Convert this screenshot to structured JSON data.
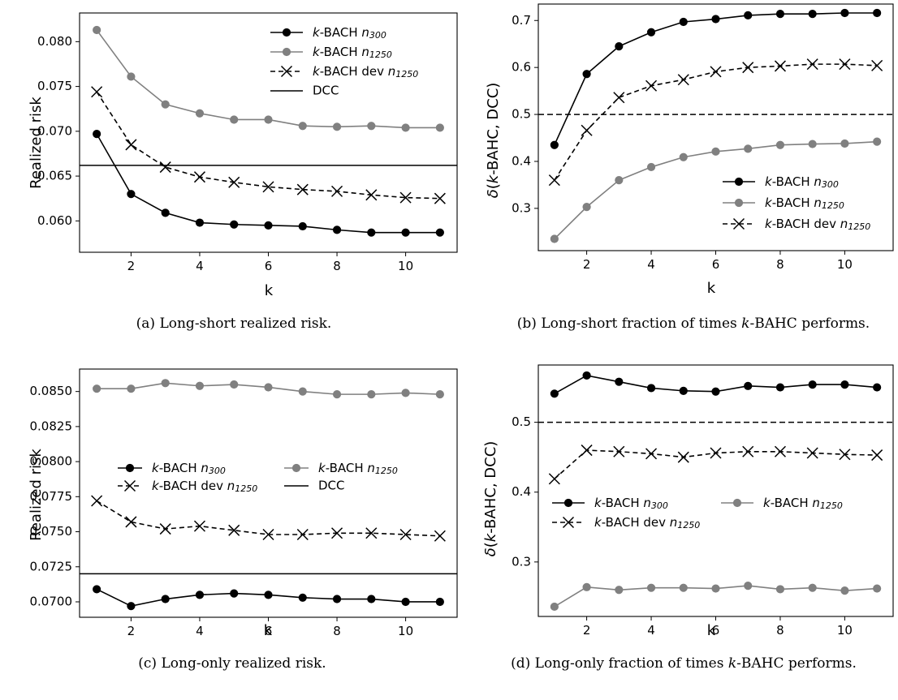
{
  "chart_data": [
    {
      "id": "a",
      "type": "line",
      "caption": "(a) Long-short realized risk.",
      "xlabel": "k",
      "ylabel": "Realized risk",
      "x": [
        1,
        2,
        3,
        4,
        5,
        6,
        7,
        8,
        9,
        10,
        11
      ],
      "xlim": [
        0.5,
        11.5
      ],
      "ylim": [
        0.0565,
        0.0832
      ],
      "xticks": [
        2,
        4,
        6,
        8,
        10
      ],
      "yticks": [
        0.06,
        0.065,
        0.07,
        0.075,
        0.08
      ],
      "yticklabels": [
        "0.060",
        "0.065",
        "0.070",
        "0.075",
        "0.080"
      ],
      "legend_position": "upper right",
      "series": [
        {
          "name": "k-BACH n300",
          "name_prefix": "k",
          "name_body": "-BACH ",
          "name_sym": "n",
          "name_sub": "300",
          "color": "#000000",
          "marker": "circle",
          "dash": "solid",
          "values": [
            0.0697,
            0.063,
            0.0609,
            0.0598,
            0.0596,
            0.0595,
            0.0594,
            0.059,
            0.0587,
            0.0587,
            0.0587
          ]
        },
        {
          "name": "k-BACH n1250",
          "name_prefix": "k",
          "name_body": "-BACH ",
          "name_sym": "n",
          "name_sub": "1250",
          "color": "#808080",
          "marker": "circle",
          "dash": "solid",
          "values": [
            0.0813,
            0.0761,
            0.073,
            0.072,
            0.0713,
            0.0713,
            0.0706,
            0.0705,
            0.0706,
            0.0704,
            0.0704
          ]
        },
        {
          "name": "k-BACH dev n1250",
          "name_prefix": "k",
          "name_body": "-BACH dev ",
          "name_sym": "n",
          "name_sub": "1250",
          "color": "#000000",
          "marker": "x",
          "dash": "dashed",
          "values": [
            0.0744,
            0.0685,
            0.066,
            0.0649,
            0.0643,
            0.0638,
            0.0635,
            0.0633,
            0.0629,
            0.0626,
            0.0625
          ]
        }
      ],
      "hlines": [
        {
          "name": "DCC",
          "y": 0.0662,
          "color": "#000000",
          "dash": "solid",
          "in_legend": true
        }
      ]
    },
    {
      "id": "b",
      "type": "line",
      "caption": "(b) Long-short fraction of times k-BAHC performs.",
      "xlabel": "k",
      "ylabel": "δ(k-BAHC, DCC)",
      "x": [
        1,
        2,
        3,
        4,
        5,
        6,
        7,
        8,
        9,
        10,
        11
      ],
      "xlim": [
        0.5,
        11.5
      ],
      "ylim": [
        0.21,
        0.735
      ],
      "xticks": [
        2,
        4,
        6,
        8,
        10
      ],
      "yticks": [
        0.3,
        0.4,
        0.5,
        0.6,
        0.7
      ],
      "yticklabels": [
        "0.3",
        "0.4",
        "0.5",
        "0.6",
        "0.7"
      ],
      "legend_position": "lower right",
      "series": [
        {
          "name": "k-BACH n300",
          "name_prefix": "k",
          "name_body": "-BACH ",
          "name_sym": "n",
          "name_sub": "300",
          "color": "#000000",
          "marker": "circle",
          "dash": "solid",
          "values": [
            0.435,
            0.586,
            0.645,
            0.675,
            0.697,
            0.703,
            0.711,
            0.714,
            0.714,
            0.716,
            0.716
          ]
        },
        {
          "name": "k-BACH n1250",
          "name_prefix": "k",
          "name_body": "-BACH ",
          "name_sym": "n",
          "name_sub": "1250",
          "color": "#808080",
          "marker": "circle",
          "dash": "solid",
          "values": [
            0.235,
            0.303,
            0.36,
            0.388,
            0.409,
            0.421,
            0.427,
            0.435,
            0.437,
            0.438,
            0.442
          ]
        },
        {
          "name": "k-BACH dev n1250",
          "name_prefix": "k",
          "name_body": "-BACH dev ",
          "name_sym": "n",
          "name_sub": "1250",
          "color": "#000000",
          "marker": "x",
          "dash": "dashed",
          "values": [
            0.36,
            0.466,
            0.536,
            0.561,
            0.574,
            0.591,
            0.6,
            0.603,
            0.607,
            0.607,
            0.604
          ]
        }
      ],
      "hlines": [
        {
          "name": "",
          "y": 0.5,
          "color": "#000000",
          "dash": "dashed",
          "in_legend": false
        }
      ]
    },
    {
      "id": "c",
      "type": "line",
      "caption": "(c) Long-only realized risk.",
      "xlabel": "k",
      "ylabel": "Realized risk",
      "x": [
        1,
        2,
        3,
        4,
        5,
        6,
        7,
        8,
        9,
        10,
        11
      ],
      "xlim": [
        0.5,
        11.5
      ],
      "ylim": [
        0.0689,
        0.0866
      ],
      "xticks": [
        2,
        4,
        6,
        8,
        10
      ],
      "yticks": [
        0.07,
        0.0725,
        0.075,
        0.0775,
        0.08,
        0.0825,
        0.085
      ],
      "yticklabels": [
        "0.0700",
        "0.0725",
        "0.0750",
        "0.0775",
        "0.0800",
        "0.0825",
        "0.0850"
      ],
      "legend_position": "center",
      "series": [
        {
          "name": "k-BACH n300",
          "name_prefix": "k",
          "name_body": "-BACH ",
          "name_sym": "n",
          "name_sub": "300",
          "color": "#000000",
          "marker": "circle",
          "dash": "solid",
          "values": [
            0.0709,
            0.0697,
            0.0702,
            0.0705,
            0.0706,
            0.0705,
            0.0703,
            0.0702,
            0.0702,
            0.07,
            0.07
          ]
        },
        {
          "name": "k-BACH n1250",
          "name_prefix": "k",
          "name_body": "-BACH ",
          "name_sym": "n",
          "name_sub": "1250",
          "color": "#808080",
          "marker": "circle",
          "dash": "solid",
          "values": [
            0.0852,
            0.0852,
            0.0856,
            0.0854,
            0.0855,
            0.0853,
            0.085,
            0.0848,
            0.0848,
            0.0849,
            0.0848
          ]
        },
        {
          "name": "k-BACH dev n1250",
          "name_prefix": "k",
          "name_body": "-BACH dev ",
          "name_sym": "n",
          "name_sub": "1250",
          "color": "#000000",
          "marker": "x",
          "dash": "dashed",
          "values": [
            0.0772,
            0.0757,
            0.0752,
            0.0754,
            0.0751,
            0.0748,
            0.0748,
            0.0749,
            0.0749,
            0.0748,
            0.0747
          ]
        }
      ],
      "hlines": [
        {
          "name": "DCC",
          "y": 0.072,
          "color": "#000000",
          "dash": "solid",
          "in_legend": true
        }
      ]
    },
    {
      "id": "d",
      "type": "line",
      "caption": "(d) Long-only fraction of times k-BAHC performs.",
      "xlabel": "k",
      "ylabel": "δ(k-BAHC, DCC)",
      "x": [
        1,
        2,
        3,
        4,
        5,
        6,
        7,
        8,
        9,
        10,
        11
      ],
      "xlim": [
        0.5,
        11.5
      ],
      "ylim": [
        0.222,
        0.582
      ],
      "xticks": [
        2,
        4,
        6,
        8,
        10
      ],
      "yticks": [
        0.3,
        0.4,
        0.5
      ],
      "yticklabels": [
        "0.3",
        "0.4",
        "0.5"
      ],
      "legend_position": "center",
      "series": [
        {
          "name": "k-BACH n300",
          "name_prefix": "k",
          "name_body": "-BACH ",
          "name_sym": "n",
          "name_sub": "300",
          "color": "#000000",
          "marker": "circle",
          "dash": "solid",
          "values": [
            0.541,
            0.567,
            0.558,
            0.549,
            0.545,
            0.544,
            0.552,
            0.55,
            0.554,
            0.554,
            0.55
          ]
        },
        {
          "name": "k-BACH n1250",
          "name_prefix": "k",
          "name_body": "-BACH ",
          "name_sym": "n",
          "name_sub": "1250",
          "color": "#808080",
          "marker": "circle",
          "dash": "solid",
          "values": [
            0.236,
            0.264,
            0.26,
            0.263,
            0.263,
            0.262,
            0.266,
            0.261,
            0.263,
            0.259,
            0.262
          ]
        },
        {
          "name": "k-BACH dev n1250",
          "name_prefix": "k",
          "name_body": "-BACH dev ",
          "name_sym": "n",
          "name_sub": "1250",
          "color": "#000000",
          "marker": "x",
          "dash": "dashed",
          "values": [
            0.419,
            0.46,
            0.458,
            0.455,
            0.45,
            0.456,
            0.458,
            0.458,
            0.456,
            0.454,
            0.453
          ]
        }
      ],
      "hlines": [
        {
          "name": "",
          "y": 0.5,
          "color": "#000000",
          "dash": "dashed",
          "in_legend": false
        }
      ]
    }
  ]
}
